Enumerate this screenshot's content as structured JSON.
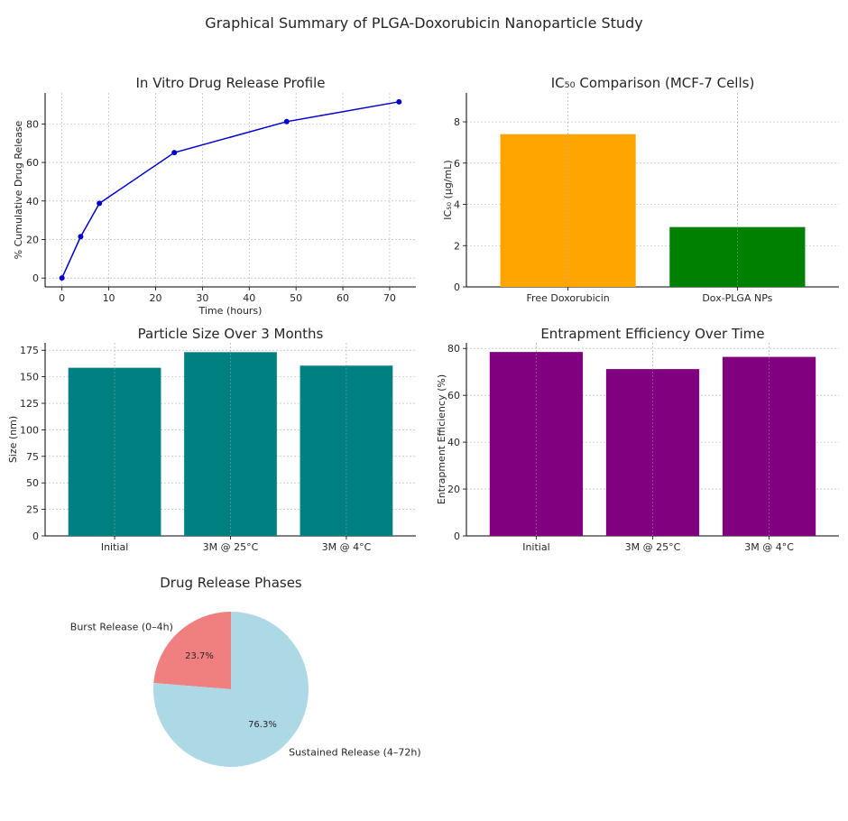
{
  "suptitle": "Graphical Summary of PLGA-Doxorubicin Nanoparticle Study",
  "colors": {
    "line": "#0000cd",
    "bar_free": "#ffa500",
    "bar_np": "#008000",
    "bar_size": "#008080",
    "bar_ee": "#800080",
    "pie_burst": "#f08080",
    "pie_sustained": "#add8e6",
    "grid": "#b0b0b0"
  },
  "chart_data": [
    {
      "type": "line",
      "title": "In Vitro Drug Release Profile",
      "xlabel": "Time (hours)",
      "ylabel": "% Cumulative Drug Release",
      "x": [
        0,
        4,
        8,
        24,
        48,
        72
      ],
      "y": [
        0,
        21.5,
        38.8,
        65.1,
        81.2,
        91.5
      ],
      "xlim": [
        -3.6,
        75.6
      ],
      "ylim": [
        -4.6,
        96.1
      ],
      "xticks": [
        0,
        10,
        20,
        30,
        40,
        50,
        60,
        70
      ],
      "yticks": [
        0,
        20,
        40,
        60,
        80
      ],
      "grid": true
    },
    {
      "type": "bar",
      "title": "IC₅₀ Comparison (MCF-7 Cells)",
      "xlabel": "",
      "ylabel": "IC₅₀ (µg/mL)",
      "categories": [
        "Free Doxorubicin",
        "Dox-PLGA NPs"
      ],
      "values": [
        7.4,
        2.9
      ],
      "ylim": [
        0,
        9.4
      ],
      "yticks": [
        0,
        2,
        4,
        6,
        8
      ],
      "grid": true
    },
    {
      "type": "bar",
      "title": "Particle Size Over 3 Months",
      "xlabel": "",
      "ylabel": "Size (nm)",
      "categories": [
        "Initial",
        "3M @ 25°C",
        "3M @ 4°C"
      ],
      "values": [
        158.5,
        173.2,
        160.5
      ],
      "ylim": [
        0,
        182
      ],
      "yticks": [
        0,
        25,
        50,
        75,
        100,
        125,
        150,
        175
      ],
      "grid": true
    },
    {
      "type": "bar",
      "title": "Entrapment Efficiency Over Time",
      "xlabel": "",
      "ylabel": "Entrapment Efficiency (%)",
      "categories": [
        "Initial",
        "3M @ 25°C",
        "3M @ 4°C"
      ],
      "values": [
        78.5,
        71.2,
        76.4
      ],
      "ylim": [
        0,
        82.4
      ],
      "yticks": [
        0,
        20,
        40,
        60,
        80
      ],
      "grid": true
    },
    {
      "type": "pie",
      "title": "Drug Release Phases",
      "labels": [
        "Burst Release (0–4h)",
        "Sustained Release (4–72h)"
      ],
      "values": [
        23.7,
        76.3
      ],
      "pct_labels": [
        "23.7%",
        "76.3%"
      ],
      "startangle": 90
    }
  ]
}
